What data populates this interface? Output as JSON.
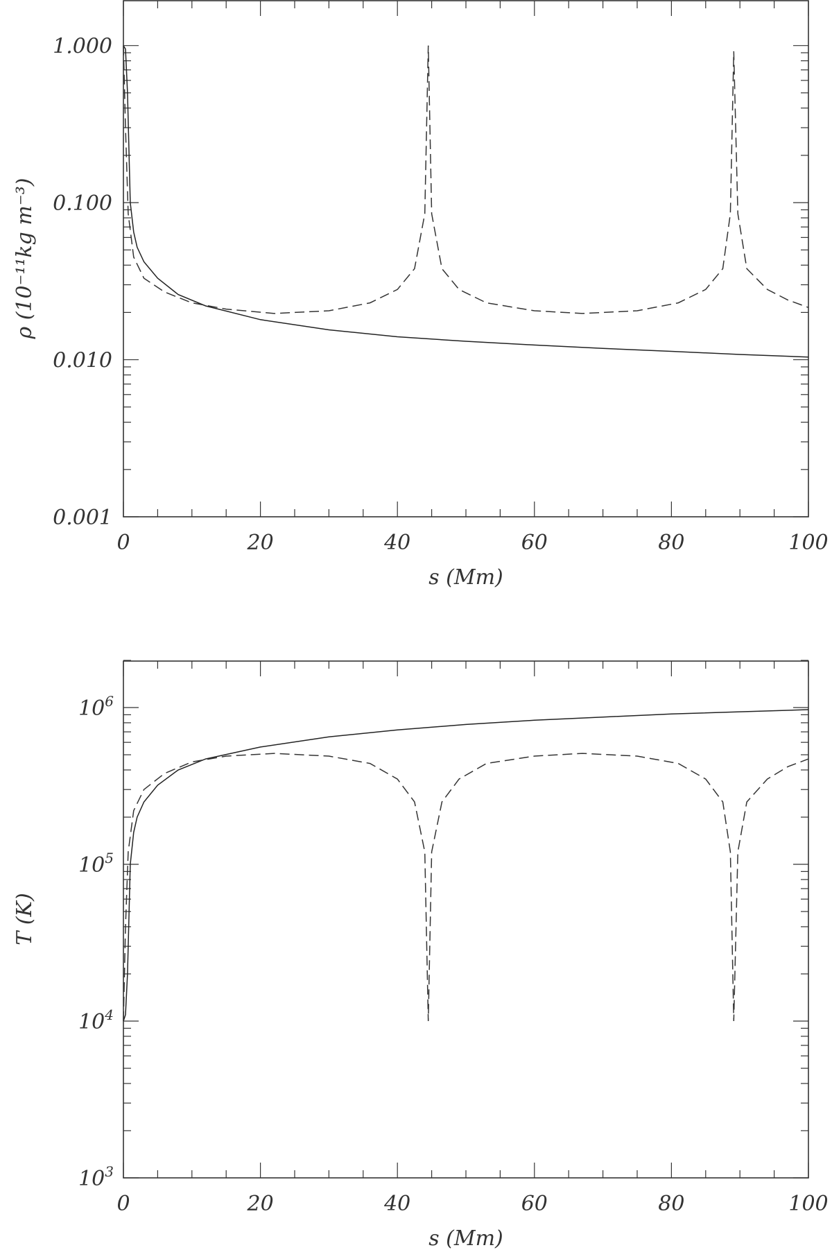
{
  "chart_data": [
    {
      "type": "line",
      "xlabel": "s (Mm)",
      "ylabel": "ρ (10⁻¹¹kg m⁻³)",
      "xlim": [
        0,
        100
      ],
      "ylim": [
        0.001,
        1.0
      ],
      "yscale": "log",
      "grid": false,
      "xticks": [
        "0",
        "20",
        "40",
        "60",
        "80",
        "100"
      ],
      "yticks": [
        "0.001",
        "0.010",
        "0.100",
        "1.000"
      ],
      "series": [
        {
          "style": "solid",
          "x": [
            0,
            0.3,
            0.6,
            1,
            1.5,
            2,
            3,
            5,
            8,
            12,
            20,
            30,
            40,
            50,
            60,
            70,
            80,
            90,
            100
          ],
          "y": [
            1.0,
            0.95,
            0.5,
            0.1,
            0.065,
            0.052,
            0.042,
            0.033,
            0.026,
            0.022,
            0.018,
            0.0155,
            0.014,
            0.0131,
            0.0124,
            0.0118,
            0.0113,
            0.0108,
            0.0104
          ]
        },
        {
          "style": "dashed",
          "x": [
            0,
            0.3,
            0.7,
            1.5,
            3,
            6,
            10,
            15,
            22,
            30,
            36,
            40,
            42.5,
            44,
            44.5,
            45,
            46.5,
            49,
            53,
            60,
            67,
            75,
            81,
            85,
            87.5,
            88.6,
            89.1,
            89.7,
            91,
            94,
            97,
            100
          ],
          "y": [
            1.0,
            0.3,
            0.085,
            0.045,
            0.033,
            0.027,
            0.023,
            0.021,
            0.0197,
            0.0205,
            0.023,
            0.028,
            0.038,
            0.085,
            1.0,
            0.085,
            0.038,
            0.028,
            0.023,
            0.0205,
            0.0197,
            0.0205,
            0.023,
            0.028,
            0.038,
            0.085,
            0.92,
            0.085,
            0.038,
            0.028,
            0.024,
            0.0215
          ]
        }
      ]
    },
    {
      "type": "line",
      "xlabel": "s (Mm)",
      "ylabel": "T (K)",
      "xlim": [
        0,
        100
      ],
      "ylim": [
        1000,
        2000000
      ],
      "yscale": "log",
      "grid": false,
      "xticks": [
        "0",
        "20",
        "40",
        "60",
        "80",
        "100"
      ],
      "yticks": [
        "10",
        "10",
        "10",
        "10"
      ],
      "ytick_exponents": [
        "3",
        "4",
        "5",
        "6"
      ],
      "series": [
        {
          "style": "solid",
          "x": [
            0,
            0.3,
            0.6,
            1,
            1.5,
            2,
            3,
            5,
            8,
            12,
            20,
            30,
            40,
            50,
            60,
            70,
            80,
            90,
            100
          ],
          "y": [
            10000,
            11000,
            20000,
            100000,
            160000,
            200000,
            250000,
            320000,
            400000,
            470000,
            560000,
            650000,
            720000,
            780000,
            830000,
            870000,
            910000,
            940000,
            970000
          ]
        },
        {
          "style": "dashed",
          "x": [
            0,
            0.3,
            0.7,
            1.5,
            3,
            6,
            10,
            15,
            22,
            30,
            36,
            40,
            42.5,
            44,
            44.5,
            45,
            46.5,
            49,
            53,
            60,
            67,
            75,
            81,
            85,
            87.5,
            88.6,
            89.1,
            89.7,
            91,
            94,
            97,
            100
          ],
          "y": [
            10000,
            40000,
            120000,
            220000,
            300000,
            380000,
            450000,
            490000,
            510000,
            490000,
            440000,
            350000,
            250000,
            120000,
            10000,
            120000,
            250000,
            350000,
            440000,
            490000,
            510000,
            490000,
            440000,
            350000,
            250000,
            120000,
            10000,
            120000,
            250000,
            350000,
            420000,
            470000
          ]
        }
      ]
    }
  ]
}
